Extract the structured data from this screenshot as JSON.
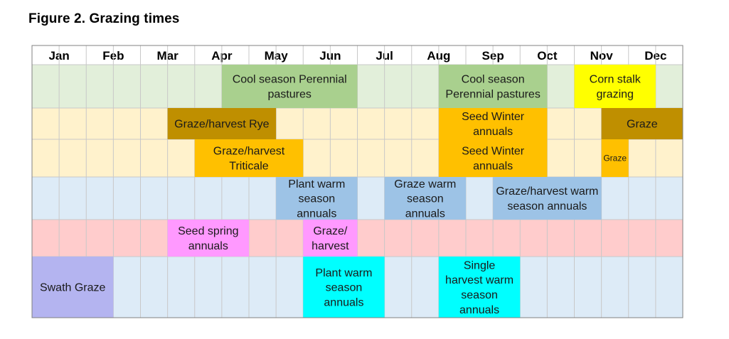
{
  "figure_title": "Figure 2. Grazing times",
  "chart_data": {
    "type": "table",
    "title": "Figure 2. Grazing times",
    "months": [
      "Jan",
      "Feb",
      "Mar",
      "Apr",
      "May",
      "Jun",
      "Jul",
      "Aug",
      "Sep",
      "Oct",
      "Nov",
      "Dec"
    ],
    "unit": "half-month",
    "rows": [
      {
        "background": "#e2efda",
        "bars": [
          {
            "label": "Cool season Perennial pastures",
            "start": 7,
            "end": 12,
            "color": "#a9d08e"
          },
          {
            "label": "Cool season Perennial pastures",
            "start": 15,
            "end": 19,
            "color": "#a9d08e"
          },
          {
            "label": "Corn stalk grazing",
            "start": 20,
            "end": 23,
            "color": "#ffff00"
          }
        ]
      },
      {
        "background": "#fff2cc",
        "bars": [
          {
            "label": "Graze/harvest Rye",
            "start": 5,
            "end": 9,
            "color": "#bf8f00"
          },
          {
            "label": "Seed Winter annuals",
            "start": 15,
            "end": 19,
            "color": "#ffc000"
          },
          {
            "label": "Graze",
            "start": 21,
            "end": 24,
            "color": "#bf8f00"
          }
        ]
      },
      {
        "background": "#fff2cc",
        "bars": [
          {
            "label": "Graze/harvest Triticale",
            "start": 6,
            "end": 10,
            "color": "#ffc000"
          },
          {
            "label": "Seed Winter annuals",
            "start": 15,
            "end": 19,
            "color": "#ffc000"
          },
          {
            "label": "Graze",
            "start": 21,
            "end": 22,
            "color": "#ffc000"
          }
        ]
      },
      {
        "background": "#ddebf7",
        "bars": [
          {
            "label": "Plant warm season annuals",
            "start": 9,
            "end": 12,
            "color": "#9dc3e6"
          },
          {
            "label": "Graze warm season annuals",
            "start": 13,
            "end": 16,
            "color": "#9dc3e6"
          },
          {
            "label": "Graze/harvest warm season annuals",
            "start": 17,
            "end": 21,
            "color": "#9dc3e6"
          }
        ]
      },
      {
        "background": "#ffcccc",
        "bars": [
          {
            "label": "Seed spring annuals",
            "start": 5,
            "end": 8,
            "color": "#ff99ff"
          },
          {
            "label": "Graze/ harvest",
            "start": 10,
            "end": 12,
            "color": "#ff99ff"
          }
        ]
      },
      {
        "background": "#ddebf7",
        "bars": [
          {
            "label": "Swath Graze",
            "start": 0,
            "end": 3,
            "color": "#b4b4f0"
          },
          {
            "label": "Plant warm season annuals",
            "start": 10,
            "end": 13,
            "color": "#00ffff"
          },
          {
            "label": "Single harvest warm season annuals",
            "start": 15,
            "end": 18,
            "color": "#00ffff"
          }
        ]
      }
    ]
  }
}
